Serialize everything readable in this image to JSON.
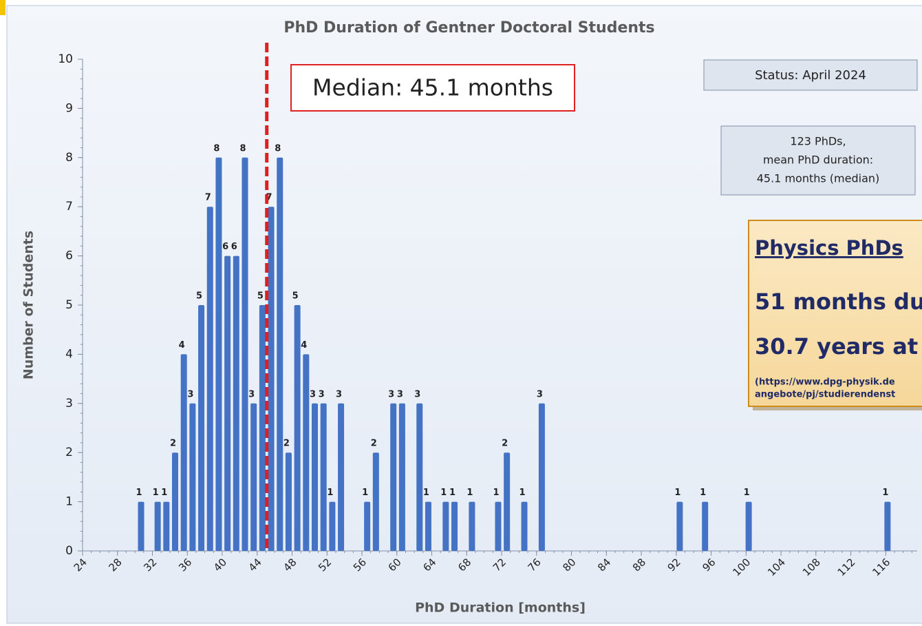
{
  "chart_data": {
    "type": "bar",
    "title": "PhD Duration of Gentner Doctoral Students",
    "x_label": "PhD Duration [months]",
    "y_label": "Number of Students",
    "x": [
      30.7,
      32.6,
      33.6,
      34.6,
      35.6,
      36.6,
      37.6,
      38.6,
      39.6,
      40.6,
      41.6,
      42.6,
      43.6,
      44.6,
      45.6,
      46.6,
      47.6,
      48.6,
      49.6,
      50.6,
      51.6,
      52.6,
      53.6,
      56.6,
      57.6,
      59.6,
      60.6,
      62.6,
      63.6,
      65.6,
      66.6,
      68.6,
      71.6,
      72.6,
      74.6,
      76.6,
      92.4,
      95.3,
      100.3,
      116.2
    ],
    "values": [
      1,
      1,
      1,
      2,
      4,
      3,
      5,
      7,
      8,
      6,
      6,
      8,
      3,
      5,
      7,
      8,
      2,
      5,
      4,
      3,
      3,
      1,
      3,
      1,
      2,
      3,
      3,
      3,
      1,
      1,
      1,
      1,
      1,
      2,
      1,
      3,
      1,
      1,
      1,
      1
    ],
    "color": "#4472c4",
    "xlim": [
      24,
      119.6
    ],
    "xticks": [
      24,
      28,
      32,
      36,
      40,
      44,
      48,
      52,
      56,
      60,
      64,
      68,
      72,
      76,
      80,
      84,
      88,
      92,
      96,
      100,
      104,
      108,
      112,
      116
    ],
    "ylim": [
      0,
      10
    ],
    "yticks": [
      0,
      1,
      2,
      3,
      4,
      5,
      6,
      7,
      8,
      9,
      10
    ],
    "grid": false,
    "median": 45.1,
    "median_label": "Median: 45.1 months",
    "status": "Status: April 2024",
    "summary": [
      "123 PhDs,",
      "mean PhD duration:",
      "45.1 months (median)"
    ],
    "physics_box": {
      "heading": "Physics PhDs",
      "lines": [
        "51 months du",
        "30.7 years at l"
      ],
      "source": [
        "(https://www.dpg-physik.de",
        "angebote/pj/studierendenst"
      ]
    }
  }
}
